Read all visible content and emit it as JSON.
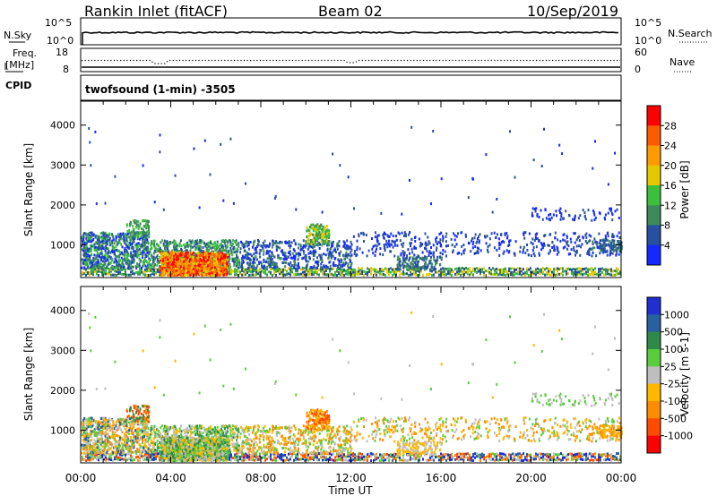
{
  "header": {
    "station": "Rankin Inlet (fitACF)",
    "beam": "Beam 02",
    "date": "10/Sep/2019"
  },
  "sky_panel": {
    "left_label": "N.Sky",
    "right_label": "N.Search",
    "left_ticks": [
      "10^5",
      "10^0"
    ],
    "right_ticks": [
      "10^5",
      "10^0"
    ]
  },
  "freq_panel": {
    "left_label_1": "Freq.",
    "left_label_2": "[MHz]",
    "cpid_label": "CPID",
    "right_label": "Nave",
    "left_ticks": [
      "18",
      "8"
    ],
    "right_ticks": [
      "60",
      "0"
    ]
  },
  "cpid_text": "twofsound (1-min) -3505",
  "time_axis": {
    "ticks": [
      "00:00",
      "04:00",
      "08:00",
      "12:00",
      "16:00",
      "20:00",
      "00:00"
    ],
    "label": "Time UT"
  },
  "power_scale": {
    "label": "Power [dB]",
    "ticks": [
      "28",
      "24",
      "20",
      "16",
      "12",
      "8",
      "4"
    ],
    "colors": [
      "#ff0000",
      "#ff5a00",
      "#ff9a00",
      "#e6c800",
      "#3cc03c",
      "#3e8a5a",
      "#2850a0",
      "#1428ff"
    ]
  },
  "velocity_scale": {
    "label": "Velocity [m s-1]",
    "ticks": [
      "1000",
      "500",
      "100",
      "25",
      "-25",
      "-100",
      "-500",
      "-1000"
    ],
    "colors": [
      "#1f2fd0",
      "#2860a0",
      "#2f8a4a",
      "#5acd3c",
      "#bebebe",
      "#ffb800",
      "#ff8c00",
      "#ff4a00",
      "#ff0000"
    ]
  },
  "chart_data": [
    {
      "type": "heatmap",
      "title": "Power",
      "xlabel": "",
      "ylabel": "Slant Range [km]",
      "x_ticks": [
        "00:00",
        "04:00",
        "08:00",
        "12:00",
        "16:00",
        "20:00",
        "00:00"
      ],
      "y_ticks": [
        1000,
        2000,
        3000,
        4000
      ],
      "xlim_hours": [
        0,
        24
      ],
      "ylim_km": [
        180,
        4600
      ],
      "colorbar": {
        "label": "Power [dB]",
        "range": [
          0,
          32
        ]
      }
    },
    {
      "type": "heatmap",
      "title": "Velocity",
      "xlabel": "Time UT",
      "ylabel": "Slant Range [km]",
      "x_ticks": [
        "00:00",
        "04:00",
        "08:00",
        "12:00",
        "16:00",
        "20:00",
        "00:00"
      ],
      "y_ticks": [
        1000,
        2000,
        3000,
        4000
      ],
      "xlim_hours": [
        0,
        24
      ],
      "ylim_km": [
        180,
        4600
      ],
      "colorbar": {
        "label": "Velocity [m s-1]",
        "range": [
          -1000,
          1000
        ]
      }
    }
  ]
}
